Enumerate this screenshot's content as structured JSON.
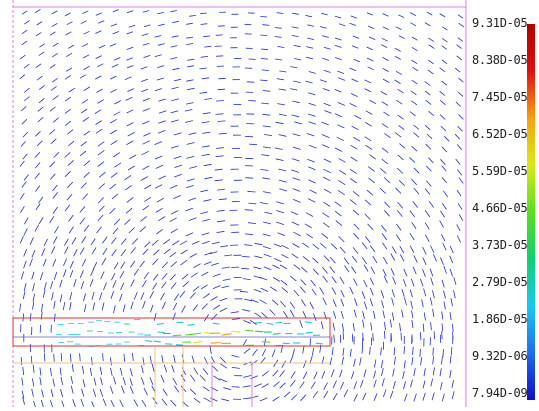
{
  "field_plot": {
    "type": "vector-field",
    "colormap": [
      "#1010c8",
      "#1e6cf0",
      "#18c8f0",
      "#10d070",
      "#58e020",
      "#d8e818",
      "#f8a010",
      "#e01010",
      "#b00000"
    ],
    "border_color": "#e080e0",
    "outline_color": "#e03030",
    "lower_region_color": "#f0c080"
  },
  "legend": {
    "labels": [
      "9.31D-05",
      "8.38D-05",
      "7.45D-05",
      "6.52D-05",
      "5.59D-05",
      "4.66D-05",
      "3.73D-05",
      "2.79D-05",
      "1.86D-05",
      "9.32D-06",
      "7.94D-09"
    ],
    "max_value": "9.31D-05",
    "min_value": "7.94D-09"
  }
}
